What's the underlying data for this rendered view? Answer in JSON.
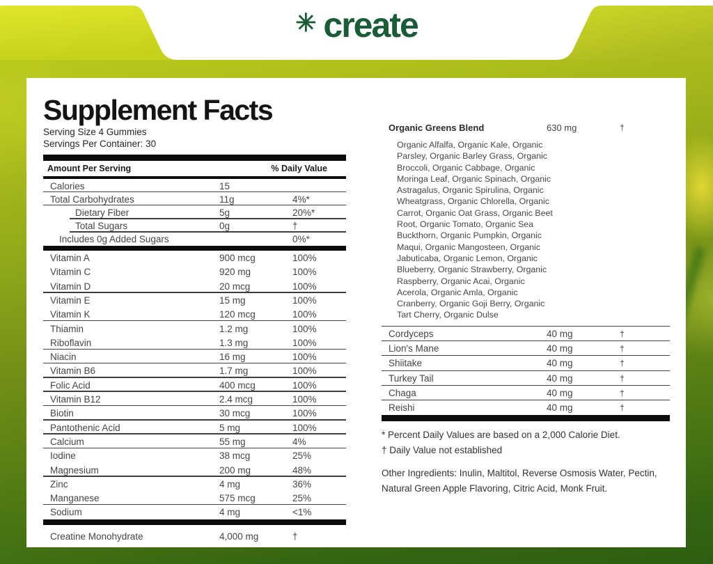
{
  "brand": {
    "name": "create",
    "icon_glyph": "✳",
    "logo_color": "#1b5c38"
  },
  "colors": {
    "ribbon_left": "#dfe52b",
    "ribbon_right": "#b4c122",
    "background_top": "#c2cf1d",
    "background_bottom": "#2d5d10",
    "panel": "#ffffff",
    "bar": "#0c0c0c"
  },
  "label": {
    "title": "Supplement Facts",
    "serving_size": "Serving Size 4 Gummies",
    "servings_per_container": "Servings Per Container: 30",
    "columns": {
      "amount_header": "Amount Per Serving",
      "dv_header": "% Daily Value"
    },
    "facts_rows": [
      {
        "name": "Calories",
        "amount": "15",
        "dv": "",
        "indent": 0,
        "rule": true
      },
      {
        "name": "Total Carbohydrates",
        "amount": "11g",
        "dv": "4%*",
        "indent": 0,
        "rule": true
      },
      {
        "name": "Dietary Fiber",
        "amount": "5g",
        "dv": "20%*",
        "indent": 2,
        "rule": true
      },
      {
        "name": "Total Sugars",
        "amount": "0g",
        "dv": "†",
        "indent": 2,
        "rule": true
      },
      {
        "name": "Includes 0g Added Sugars",
        "amount": "",
        "dv": "0%*",
        "indent": 1,
        "rule": false
      }
    ],
    "vitamin_rows": [
      {
        "name": "Vitamin A",
        "amount": "900 mcg",
        "dv": "100%",
        "indent": 0,
        "rule": false
      },
      {
        "name": "Vitamin C",
        "amount": "920 mg",
        "dv": "100%",
        "indent": 0,
        "rule": false
      },
      {
        "name": "Vitamin D",
        "amount": "20 mcg",
        "dv": "100%",
        "indent": 0,
        "rule": true
      },
      {
        "name": "Vitamin E",
        "amount": "15 mg",
        "dv": "100%",
        "indent": 0,
        "rule": false
      },
      {
        "name": "Vitamin K",
        "amount": "120 mcg",
        "dv": "100%",
        "indent": 0,
        "rule": true
      },
      {
        "name": "Thiamin",
        "amount": "1.2 mg",
        "dv": "100%",
        "indent": 0,
        "rule": false
      },
      {
        "name": "Riboflavin",
        "amount": "1.3 mg",
        "dv": "100%",
        "indent": 0,
        "rule": true
      },
      {
        "name": "Niacin",
        "amount": "16 mg",
        "dv": "100%",
        "indent": 0,
        "rule": true
      },
      {
        "name": "Vitamin B6",
        "amount": "1.7 mg",
        "dv": "100%",
        "indent": 0,
        "rule": true
      },
      {
        "name": "Folic Acid",
        "amount": "400 mcg",
        "dv": "100%",
        "indent": 0,
        "rule": true
      },
      {
        "name": "Vitamin B12",
        "amount": "2.4 mcg",
        "dv": "100%",
        "indent": 0,
        "rule": true
      },
      {
        "name": "Biotin",
        "amount": "30 mcg",
        "dv": "100%",
        "indent": 0,
        "rule": true
      },
      {
        "name": "Pantothenic Acid",
        "amount": "5 mg",
        "dv": "100%",
        "indent": 0,
        "rule": true
      },
      {
        "name": "Calcium",
        "amount": "55 mg",
        "dv": "4%",
        "indent": 0,
        "rule": true
      },
      {
        "name": "Iodine",
        "amount": "38 mcg",
        "dv": "25%",
        "indent": 0,
        "rule": false
      },
      {
        "name": "Magnesium",
        "amount": "200 mg",
        "dv": "48%",
        "indent": 0,
        "rule": true
      },
      {
        "name": "Zinc",
        "amount": "4 mg",
        "dv": "36%",
        "indent": 0,
        "rule": false
      },
      {
        "name": "Manganese",
        "amount": "575 mcg",
        "dv": "25%",
        "indent": 0,
        "rule": true
      },
      {
        "name": "Sodium",
        "amount": "4 mg",
        "dv": "<1%",
        "indent": 0,
        "rule": false
      }
    ],
    "creatine_row": {
      "name": "Creatine Monohydrate",
      "amount": "4,000 mg",
      "dv": "†",
      "indent": 0,
      "rule": false
    }
  },
  "greens": {
    "header": {
      "name": "Organic Greens Blend",
      "amount": "630 mg",
      "dv": "†"
    },
    "ingredients_lines": [
      "Organic Alfalfa, Organic Kale, Organic",
      "Parsley, Organic Barley Grass, Organic",
      "Broccoli, Organic Cabbage, Organic",
      "Moringa Leaf, Organic Spinach, Organic",
      "Astragalus, Organic Spirulina, Organic",
      "Wheatgrass, Organic Chlorella, Organic",
      "Carrot, Organic Oat Grass, Organic Beet",
      "Root, Organic Tomato, Organic Sea",
      "Buckthorn, Organic Pumpkin, Organic",
      "Maqui, Organic Mangosteen, Organic",
      "Jabuticaba, Organic Lemon, Organic",
      "Blueberry, Organic Strawberry, Organic",
      "Raspberry, Organic Acai, Organic",
      "Acerola, Organic Amla, Organic",
      "Cranberry, Organic Goji Berry, Organic",
      "Tart Cherry, Organic Dulse"
    ],
    "mushroom_rows": [
      {
        "name": "Cordyceps",
        "amount": "40 mg",
        "dv": "†"
      },
      {
        "name": "Lion's Mane",
        "amount": "40 mg",
        "dv": "†"
      },
      {
        "name": "Shiitake",
        "amount": "40 mg",
        "dv": "†"
      },
      {
        "name": "Turkey Tail",
        "amount": "40 mg",
        "dv": "†"
      },
      {
        "name": "Chaga",
        "amount": "40 mg",
        "dv": "†"
      },
      {
        "name": "Reishi",
        "amount": "40 mg",
        "dv": "†"
      }
    ]
  },
  "footnotes": {
    "percent": "* Percent Daily Values are based on a 2,000 Calorie Diet.",
    "dagger": "† Daily Value not established",
    "other_lines": [
      "Other Ingredients: Inulin, Maltitol, Reverse Osmosis Water, Pectin,",
      "Natural Green Apple Flavoring, Citric Acid, Monk Fruit."
    ]
  }
}
